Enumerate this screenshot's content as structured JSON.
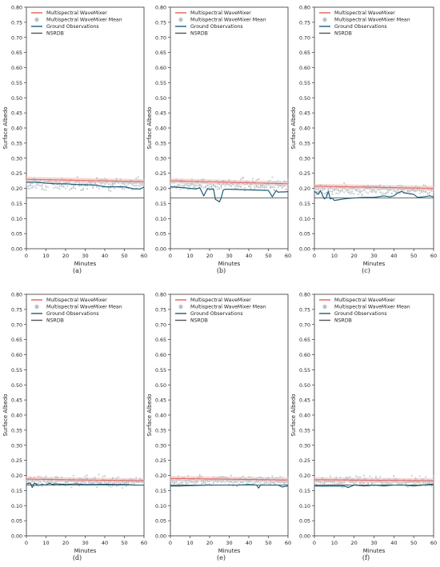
{
  "colors": {
    "wavemixer": "#e0605a",
    "wavemixer_band": "#f2c4c0",
    "wavemixer_mean": "#b9c2c8",
    "ground": "#1d5d77",
    "nsrdb": "#555555"
  },
  "chart_data": [
    {
      "type": "line",
      "caption": "(a)",
      "xlabel": "Minutes",
      "ylabel": "Surface Albedo",
      "xlim": [
        0,
        60
      ],
      "ylim": [
        0,
        0.8
      ],
      "xticks": [
        "0",
        "10",
        "20",
        "30",
        "40",
        "50",
        "60"
      ],
      "yticks": [
        "0.00",
        "0.05",
        "0.10",
        "0.15",
        "0.20",
        "0.25",
        "0.30",
        "0.35",
        "0.40",
        "0.45",
        "0.50",
        "0.55",
        "0.60",
        "0.65",
        "0.70",
        "0.75",
        "0.80"
      ],
      "legend": [
        "Multispectral WaveMixer",
        "Multispectral WaveMixer Mean",
        "Ground Observations",
        "NSRDB"
      ],
      "legend_position": "top-left",
      "series": [
        {
          "name": "Multispectral WaveMixer",
          "type": "line",
          "x": [
            0,
            60
          ],
          "y": [
            0.23,
            0.222
          ]
        },
        {
          "name": "Multispectral WaveMixer Mean",
          "type": "scatter",
          "center": 0.215,
          "spread": 0.028
        },
        {
          "name": "Ground Observations",
          "type": "line",
          "x": [
            0,
            5,
            10,
            15,
            20,
            25,
            30,
            35,
            40,
            45,
            50,
            55,
            58,
            60
          ],
          "y": [
            0.22,
            0.22,
            0.217,
            0.215,
            0.215,
            0.213,
            0.212,
            0.211,
            0.205,
            0.205,
            0.205,
            0.198,
            0.198,
            0.204
          ]
        },
        {
          "name": "NSRDB",
          "type": "line",
          "x": [
            0,
            60
          ],
          "y": [
            0.168,
            0.168
          ]
        }
      ]
    },
    {
      "type": "line",
      "caption": "(b)",
      "xlabel": "Minutes",
      "ylabel": "Surface Albedo",
      "xlim": [
        0,
        60
      ],
      "ylim": [
        0,
        0.8
      ],
      "xticks": [
        "0",
        "10",
        "20",
        "30",
        "40",
        "50",
        "60"
      ],
      "yticks": [
        "0.00",
        "0.05",
        "0.10",
        "0.15",
        "0.20",
        "0.25",
        "0.30",
        "0.35",
        "0.40",
        "0.45",
        "0.50",
        "0.55",
        "0.60",
        "0.65",
        "0.70",
        "0.75",
        "0.80"
      ],
      "legend": [
        "Multispectral WaveMixer",
        "Multispectral WaveMixer Mean",
        "Ground Observations",
        "NSRDB"
      ],
      "legend_position": "top-left",
      "series": [
        {
          "name": "Multispectral WaveMixer",
          "type": "line",
          "x": [
            0,
            60
          ],
          "y": [
            0.225,
            0.215
          ]
        },
        {
          "name": "Multispectral WaveMixer Mean",
          "type": "scatter",
          "center": 0.212,
          "spread": 0.03
        },
        {
          "name": "Ground Observations",
          "type": "line",
          "x": [
            0,
            5,
            10,
            13,
            15,
            17,
            19,
            20,
            22,
            23,
            24,
            25,
            26,
            27,
            28,
            30,
            35,
            40,
            45,
            50,
            52,
            54,
            55,
            56,
            58,
            60
          ],
          "y": [
            0.205,
            0.203,
            0.2,
            0.198,
            0.202,
            0.175,
            0.2,
            0.197,
            0.198,
            0.163,
            0.16,
            0.155,
            0.17,
            0.195,
            0.197,
            0.197,
            0.196,
            0.195,
            0.194,
            0.193,
            0.172,
            0.193,
            0.187,
            0.188,
            0.188,
            0.189
          ]
        },
        {
          "name": "NSRDB",
          "type": "line",
          "x": [
            0,
            60
          ],
          "y": [
            0.168,
            0.168
          ]
        }
      ]
    },
    {
      "type": "line",
      "caption": "(c)",
      "xlabel": "Minutes",
      "ylabel": "Surface Albedo",
      "xlim": [
        0,
        60
      ],
      "ylim": [
        0,
        0.8
      ],
      "xticks": [
        "0",
        "10",
        "20",
        "30",
        "40",
        "50",
        "60"
      ],
      "yticks": [
        "0.00",
        "0.05",
        "0.10",
        "0.15",
        "0.20",
        "0.25",
        "0.30",
        "0.35",
        "0.40",
        "0.45",
        "0.50",
        "0.55",
        "0.60",
        "0.65",
        "0.70",
        "0.75",
        "0.80"
      ],
      "legend": [
        "Multispectral WaveMixer",
        "Multispectral WaveMixer Mean",
        "Ground Observations",
        "NSRDB"
      ],
      "legend_position": "top-left",
      "series": [
        {
          "name": "Multispectral WaveMixer",
          "type": "line",
          "x": [
            0,
            60
          ],
          "y": [
            0.207,
            0.2
          ]
        },
        {
          "name": "Multispectral WaveMixer Mean",
          "type": "scatter",
          "center": 0.195,
          "spread": 0.025
        },
        {
          "name": "Ground Observations",
          "type": "line",
          "x": [
            0,
            2,
            3,
            5,
            6,
            7,
            8,
            9,
            10,
            12,
            15,
            20,
            25,
            30,
            35,
            38,
            40,
            42,
            44,
            45,
            47,
            50,
            52,
            55,
            58,
            60
          ],
          "y": [
            0.19,
            0.18,
            0.192,
            0.165,
            0.17,
            0.19,
            0.165,
            0.168,
            0.16,
            0.162,
            0.165,
            0.168,
            0.17,
            0.17,
            0.175,
            0.172,
            0.175,
            0.185,
            0.19,
            0.185,
            0.183,
            0.18,
            0.17,
            0.172,
            0.175,
            0.172
          ]
        },
        {
          "name": "NSRDB",
          "type": "line",
          "x": [
            0,
            60
          ],
          "y": [
            0.168,
            0.168
          ]
        }
      ]
    },
    {
      "type": "line",
      "caption": "(d)",
      "xlabel": "Minutes",
      "ylabel": "Surface Albedo",
      "xlim": [
        0,
        60
      ],
      "ylim": [
        0,
        0.8
      ],
      "xticks": [
        "0",
        "10",
        "20",
        "30",
        "40",
        "50",
        "60"
      ],
      "yticks": [
        "0.00",
        "0.05",
        "0.10",
        "0.15",
        "0.20",
        "0.25",
        "0.30",
        "0.35",
        "0.40",
        "0.45",
        "0.50",
        "0.55",
        "0.60",
        "0.65",
        "0.70",
        "0.75",
        "0.80"
      ],
      "legend": [
        "Multispectral WaveMixer",
        "Multispectral WaveMixer Mean",
        "Ground Observations",
        "NSRDB"
      ],
      "legend_position": "top-left",
      "series": [
        {
          "name": "Multispectral WaveMixer",
          "type": "line",
          "x": [
            0,
            60
          ],
          "y": [
            0.188,
            0.182
          ]
        },
        {
          "name": "Multispectral WaveMixer Mean",
          "type": "scatter",
          "center": 0.18,
          "spread": 0.025
        },
        {
          "name": "Ground Observations",
          "type": "line",
          "x": [
            0,
            2,
            3,
            4,
            5,
            6,
            8,
            10,
            12,
            13,
            15,
            20,
            25,
            30,
            35,
            40,
            45,
            50,
            55,
            60
          ],
          "y": [
            0.172,
            0.175,
            0.16,
            0.175,
            0.172,
            0.168,
            0.17,
            0.168,
            0.175,
            0.17,
            0.172,
            0.17,
            0.172,
            0.17,
            0.17,
            0.171,
            0.17,
            0.17,
            0.168,
            0.168
          ]
        },
        {
          "name": "NSRDB",
          "type": "line",
          "x": [
            0,
            60
          ],
          "y": [
            0.168,
            0.168
          ]
        }
      ]
    },
    {
      "type": "line",
      "caption": "(e)",
      "xlabel": "Minutes",
      "ylabel": "Surface Albedo",
      "xlim": [
        0,
        60
      ],
      "ylim": [
        0,
        0.8
      ],
      "xticks": [
        "0",
        "10",
        "20",
        "30",
        "40",
        "50",
        "60"
      ],
      "yticks": [
        "0.00",
        "0.05",
        "0.10",
        "0.15",
        "0.20",
        "0.25",
        "0.30",
        "0.35",
        "0.40",
        "0.45",
        "0.50",
        "0.55",
        "0.60",
        "0.65",
        "0.70",
        "0.75",
        "0.80"
      ],
      "legend": [
        "Multispectral WaveMixer",
        "Multispectral WaveMixer Mean",
        "Ground Observations",
        "NSRDB"
      ],
      "legend_position": "top-left",
      "series": [
        {
          "name": "Multispectral WaveMixer",
          "type": "line",
          "x": [
            0,
            60
          ],
          "y": [
            0.19,
            0.185
          ]
        },
        {
          "name": "Multispectral WaveMixer Mean",
          "type": "scatter",
          "center": 0.183,
          "spread": 0.022
        },
        {
          "name": "Ground Observations",
          "type": "line",
          "x": [
            0,
            5,
            10,
            15,
            20,
            25,
            30,
            35,
            40,
            44,
            45,
            46,
            50,
            55,
            57,
            60
          ],
          "y": [
            0.165,
            0.165,
            0.166,
            0.167,
            0.168,
            0.168,
            0.168,
            0.168,
            0.17,
            0.168,
            0.158,
            0.168,
            0.168,
            0.168,
            0.162,
            0.165
          ]
        },
        {
          "name": "NSRDB",
          "type": "line",
          "x": [
            0,
            60
          ],
          "y": [
            0.168,
            0.168
          ]
        }
      ]
    },
    {
      "type": "line",
      "caption": "(f)",
      "xlabel": "Minutes",
      "ylabel": "Surface Albedo",
      "xlim": [
        0,
        60
      ],
      "ylim": [
        0,
        0.8
      ],
      "xticks": [
        "0",
        "10",
        "20",
        "30",
        "40",
        "50",
        "60"
      ],
      "yticks": [
        "0.00",
        "0.05",
        "0.10",
        "0.15",
        "0.20",
        "0.25",
        "0.30",
        "0.35",
        "0.40",
        "0.45",
        "0.50",
        "0.55",
        "0.60",
        "0.65",
        "0.70",
        "0.75",
        "0.80"
      ],
      "legend": [
        "Multispectral WaveMixer",
        "Multispectral WaveMixer Mean",
        "Ground Observations",
        "NSRDB"
      ],
      "legend_position": "top-left",
      "series": [
        {
          "name": "Multispectral WaveMixer",
          "type": "line",
          "x": [
            0,
            60
          ],
          "y": [
            0.186,
            0.182
          ]
        },
        {
          "name": "Multispectral WaveMixer Mean",
          "type": "scatter",
          "center": 0.18,
          "spread": 0.025
        },
        {
          "name": "Ground Observations",
          "type": "line",
          "x": [
            0,
            5,
            10,
            15,
            17,
            20,
            25,
            30,
            35,
            40,
            45,
            50,
            55,
            60
          ],
          "y": [
            0.165,
            0.165,
            0.165,
            0.165,
            0.16,
            0.168,
            0.165,
            0.168,
            0.165,
            0.168,
            0.168,
            0.165,
            0.168,
            0.172
          ]
        },
        {
          "name": "NSRDB",
          "type": "line",
          "x": [
            0,
            60
          ],
          "y": [
            0.168,
            0.168
          ]
        }
      ]
    }
  ]
}
